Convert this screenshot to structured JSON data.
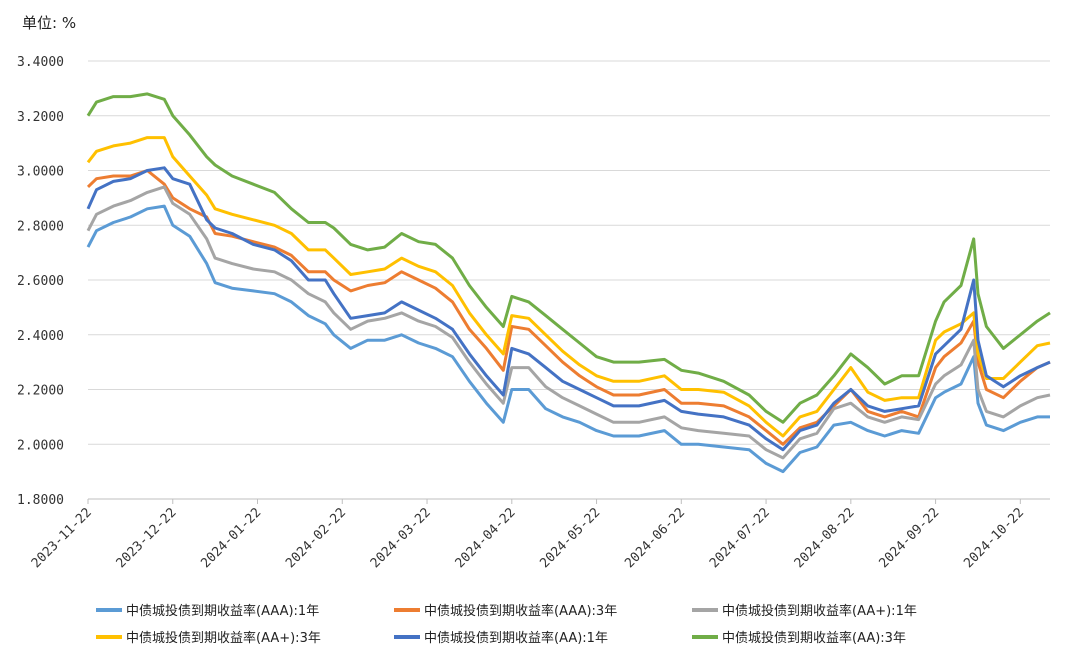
{
  "chart_data": {
    "type": "line",
    "unit_label": "单位: %",
    "ylim": [
      1.8,
      3.4
    ],
    "yticks": [
      "1.8000",
      "2.0000",
      "2.2000",
      "2.4000",
      "2.6000",
      "2.8000",
      "3.0000",
      "3.2000",
      "3.4000"
    ],
    "ytick_values": [
      1.8,
      2.0,
      2.2,
      2.4,
      2.6,
      2.8,
      3.0,
      3.2,
      3.4
    ],
    "xticks": [
      "2023-11-22",
      "2023-12-22",
      "2024-01-22",
      "2024-02-22",
      "2024-03-22",
      "2024-04-22",
      "2024-05-22",
      "2024-06-22",
      "2024-07-22",
      "2024-08-22",
      "2024-09-22",
      "2024-10-22"
    ],
    "xlim": [
      0,
      11.35
    ],
    "grid": true,
    "legend_position": "bottom",
    "series": [
      {
        "name": "中债城投债到期收益率(AAA):1年",
        "color": "#5B9BD5",
        "x": [
          0,
          0.1,
          0.3,
          0.5,
          0.7,
          0.9,
          1.0,
          1.2,
          1.4,
          1.5,
          1.7,
          1.95,
          2.2,
          2.4,
          2.6,
          2.8,
          2.9,
          3.1,
          3.3,
          3.5,
          3.7,
          3.9,
          4.1,
          4.3,
          4.5,
          4.7,
          4.9,
          5.0,
          5.2,
          5.4,
          5.6,
          5.8,
          6.0,
          6.2,
          6.5,
          6.8,
          7.0,
          7.2,
          7.5,
          7.8,
          8.0,
          8.2,
          8.4,
          8.6,
          8.8,
          9.0,
          9.2,
          9.4,
          9.6,
          9.8,
          10.0,
          10.1,
          10.3,
          10.45,
          10.5,
          10.6,
          10.8,
          11.0,
          11.2,
          11.35
        ],
        "y": [
          2.72,
          2.78,
          2.81,
          2.83,
          2.86,
          2.87,
          2.8,
          2.76,
          2.66,
          2.59,
          2.57,
          2.56,
          2.55,
          2.52,
          2.47,
          2.44,
          2.4,
          2.35,
          2.38,
          2.38,
          2.4,
          2.37,
          2.35,
          2.32,
          2.23,
          2.15,
          2.08,
          2.2,
          2.2,
          2.13,
          2.1,
          2.08,
          2.05,
          2.03,
          2.03,
          2.05,
          2.0,
          2.0,
          1.99,
          1.98,
          1.93,
          1.9,
          1.97,
          1.99,
          2.07,
          2.08,
          2.05,
          2.03,
          2.05,
          2.04,
          2.17,
          2.19,
          2.22,
          2.32,
          2.15,
          2.07,
          2.05,
          2.08,
          2.1,
          2.1
        ]
      },
      {
        "name": "中债城投债到期收益率(AAA):3年",
        "color": "#ED7D31",
        "x": [
          0,
          0.1,
          0.3,
          0.5,
          0.7,
          0.9,
          1.0,
          1.2,
          1.4,
          1.5,
          1.7,
          1.95,
          2.2,
          2.4,
          2.6,
          2.8,
          2.9,
          3.1,
          3.3,
          3.5,
          3.7,
          3.9,
          4.1,
          4.3,
          4.5,
          4.7,
          4.9,
          5.0,
          5.2,
          5.4,
          5.6,
          5.8,
          6.0,
          6.2,
          6.5,
          6.8,
          7.0,
          7.2,
          7.5,
          7.8,
          8.0,
          8.2,
          8.4,
          8.6,
          8.8,
          9.0,
          9.2,
          9.4,
          9.6,
          9.8,
          10.0,
          10.1,
          10.3,
          10.45,
          10.5,
          10.6,
          10.8,
          11.0,
          11.2,
          11.35
        ],
        "y": [
          2.94,
          2.97,
          2.98,
          2.98,
          3.0,
          2.95,
          2.9,
          2.86,
          2.83,
          2.77,
          2.76,
          2.74,
          2.72,
          2.69,
          2.63,
          2.63,
          2.6,
          2.56,
          2.58,
          2.59,
          2.63,
          2.6,
          2.57,
          2.52,
          2.42,
          2.35,
          2.27,
          2.43,
          2.42,
          2.36,
          2.3,
          2.25,
          2.21,
          2.18,
          2.18,
          2.2,
          2.15,
          2.15,
          2.14,
          2.1,
          2.05,
          2.0,
          2.06,
          2.08,
          2.14,
          2.2,
          2.12,
          2.1,
          2.12,
          2.1,
          2.28,
          2.32,
          2.37,
          2.45,
          2.3,
          2.2,
          2.17,
          2.23,
          2.28,
          2.3
        ]
      },
      {
        "name": "中债城投债到期收益率(AA+):1年",
        "color": "#A5A5A5",
        "x": [
          0,
          0.1,
          0.3,
          0.5,
          0.7,
          0.9,
          1.0,
          1.2,
          1.4,
          1.5,
          1.7,
          1.95,
          2.2,
          2.4,
          2.6,
          2.8,
          2.9,
          3.1,
          3.3,
          3.5,
          3.7,
          3.9,
          4.1,
          4.3,
          4.5,
          4.7,
          4.9,
          5.0,
          5.2,
          5.4,
          5.6,
          5.8,
          6.0,
          6.2,
          6.5,
          6.8,
          7.0,
          7.2,
          7.5,
          7.8,
          8.0,
          8.2,
          8.4,
          8.6,
          8.8,
          9.0,
          9.2,
          9.4,
          9.6,
          9.8,
          10.0,
          10.1,
          10.3,
          10.45,
          10.5,
          10.6,
          10.8,
          11.0,
          11.2,
          11.35
        ],
        "y": [
          2.78,
          2.84,
          2.87,
          2.89,
          2.92,
          2.94,
          2.88,
          2.84,
          2.75,
          2.68,
          2.66,
          2.64,
          2.63,
          2.6,
          2.55,
          2.52,
          2.48,
          2.42,
          2.45,
          2.46,
          2.48,
          2.45,
          2.43,
          2.39,
          2.3,
          2.22,
          2.15,
          2.28,
          2.28,
          2.21,
          2.17,
          2.14,
          2.11,
          2.08,
          2.08,
          2.1,
          2.06,
          2.05,
          2.04,
          2.03,
          1.98,
          1.95,
          2.02,
          2.04,
          2.13,
          2.15,
          2.1,
          2.08,
          2.1,
          2.09,
          2.22,
          2.25,
          2.29,
          2.38,
          2.2,
          2.12,
          2.1,
          2.14,
          2.17,
          2.18
        ]
      },
      {
        "name": "中债城投债到期收益率(AA+):3年",
        "color": "#FFC000",
        "x": [
          0,
          0.1,
          0.3,
          0.5,
          0.7,
          0.9,
          1.0,
          1.2,
          1.4,
          1.5,
          1.7,
          1.95,
          2.2,
          2.4,
          2.6,
          2.8,
          2.9,
          3.1,
          3.3,
          3.5,
          3.7,
          3.9,
          4.1,
          4.3,
          4.5,
          4.7,
          4.9,
          5.0,
          5.2,
          5.4,
          5.6,
          5.8,
          6.0,
          6.2,
          6.5,
          6.8,
          7.0,
          7.2,
          7.5,
          7.8,
          8.0,
          8.2,
          8.4,
          8.6,
          8.8,
          9.0,
          9.2,
          9.4,
          9.6,
          9.8,
          10.0,
          10.1,
          10.3,
          10.45,
          10.5,
          10.6,
          10.8,
          11.0,
          11.2,
          11.35
        ],
        "y": [
          3.03,
          3.07,
          3.09,
          3.1,
          3.12,
          3.12,
          3.05,
          2.98,
          2.91,
          2.86,
          2.84,
          2.82,
          2.8,
          2.77,
          2.71,
          2.71,
          2.68,
          2.62,
          2.63,
          2.64,
          2.68,
          2.65,
          2.63,
          2.58,
          2.48,
          2.4,
          2.33,
          2.47,
          2.46,
          2.4,
          2.34,
          2.29,
          2.25,
          2.23,
          2.23,
          2.25,
          2.2,
          2.2,
          2.19,
          2.14,
          2.08,
          2.03,
          2.1,
          2.12,
          2.2,
          2.28,
          2.19,
          2.16,
          2.17,
          2.17,
          2.38,
          2.41,
          2.44,
          2.48,
          2.33,
          2.24,
          2.24,
          2.3,
          2.36,
          2.37
        ]
      },
      {
        "name": "中债城投债到期收益率(AA):1年",
        "color": "#4472C4",
        "x": [
          0,
          0.1,
          0.3,
          0.5,
          0.7,
          0.9,
          1.0,
          1.2,
          1.4,
          1.5,
          1.7,
          1.95,
          2.2,
          2.4,
          2.6,
          2.8,
          2.9,
          3.1,
          3.3,
          3.5,
          3.7,
          3.9,
          4.1,
          4.3,
          4.5,
          4.7,
          4.9,
          5.0,
          5.2,
          5.4,
          5.6,
          5.8,
          6.0,
          6.2,
          6.5,
          6.8,
          7.0,
          7.2,
          7.5,
          7.8,
          8.0,
          8.2,
          8.4,
          8.6,
          8.8,
          9.0,
          9.2,
          9.4,
          9.6,
          9.8,
          10.0,
          10.1,
          10.3,
          10.45,
          10.5,
          10.6,
          10.8,
          11.0,
          11.2,
          11.35
        ],
        "y": [
          2.86,
          2.93,
          2.96,
          2.97,
          3.0,
          3.01,
          2.97,
          2.95,
          2.82,
          2.79,
          2.77,
          2.73,
          2.71,
          2.67,
          2.6,
          2.6,
          2.55,
          2.46,
          2.47,
          2.48,
          2.52,
          2.49,
          2.46,
          2.42,
          2.33,
          2.25,
          2.18,
          2.35,
          2.33,
          2.28,
          2.23,
          2.2,
          2.17,
          2.14,
          2.14,
          2.16,
          2.12,
          2.11,
          2.1,
          2.07,
          2.02,
          1.98,
          2.05,
          2.07,
          2.15,
          2.2,
          2.14,
          2.12,
          2.13,
          2.14,
          2.33,
          2.36,
          2.42,
          2.6,
          2.38,
          2.25,
          2.21,
          2.25,
          2.28,
          2.3
        ]
      },
      {
        "name": "中债城投债到期收益率(AA):3年",
        "color": "#70AD47",
        "x": [
          0,
          0.1,
          0.3,
          0.5,
          0.7,
          0.9,
          1.0,
          1.2,
          1.4,
          1.5,
          1.7,
          1.95,
          2.2,
          2.4,
          2.6,
          2.8,
          2.9,
          3.1,
          3.3,
          3.5,
          3.7,
          3.9,
          4.1,
          4.3,
          4.5,
          4.7,
          4.9,
          5.0,
          5.2,
          5.4,
          5.6,
          5.8,
          6.0,
          6.2,
          6.5,
          6.8,
          7.0,
          7.2,
          7.5,
          7.8,
          8.0,
          8.2,
          8.4,
          8.6,
          8.8,
          9.0,
          9.2,
          9.4,
          9.6,
          9.8,
          10.0,
          10.1,
          10.3,
          10.45,
          10.5,
          10.6,
          10.8,
          11.0,
          11.2,
          11.35
        ],
        "y": [
          3.2,
          3.25,
          3.27,
          3.27,
          3.28,
          3.26,
          3.2,
          3.13,
          3.05,
          3.02,
          2.98,
          2.95,
          2.92,
          2.86,
          2.81,
          2.81,
          2.79,
          2.73,
          2.71,
          2.72,
          2.77,
          2.74,
          2.73,
          2.68,
          2.58,
          2.5,
          2.43,
          2.54,
          2.52,
          2.47,
          2.42,
          2.37,
          2.32,
          2.3,
          2.3,
          2.31,
          2.27,
          2.26,
          2.23,
          2.18,
          2.12,
          2.08,
          2.15,
          2.18,
          2.25,
          2.33,
          2.28,
          2.22,
          2.25,
          2.25,
          2.45,
          2.52,
          2.58,
          2.75,
          2.55,
          2.43,
          2.35,
          2.4,
          2.45,
          2.48
        ]
      }
    ]
  }
}
